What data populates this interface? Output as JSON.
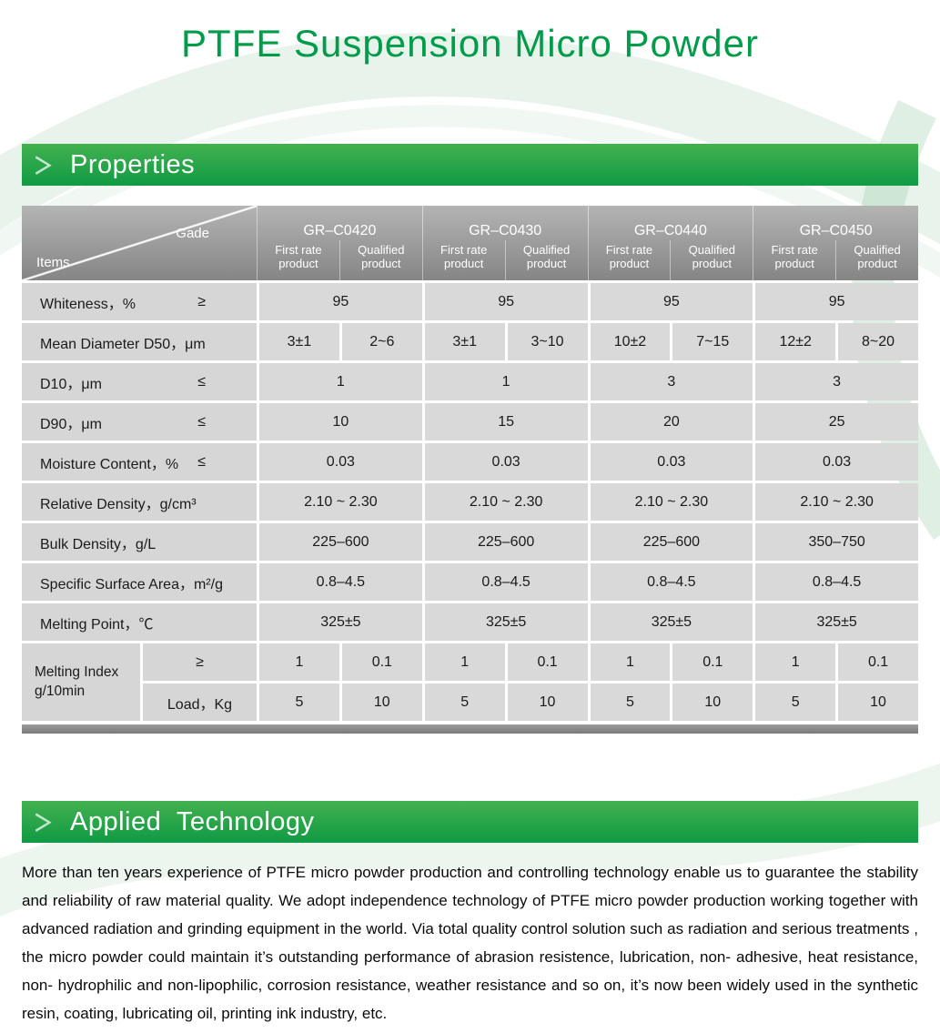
{
  "page": {
    "title": "PTFE Suspension Micro Powder"
  },
  "sections": {
    "properties": {
      "heading": "Properties"
    },
    "applied": {
      "heading": "Applied  Technology",
      "paragraph": "More than ten years experience of PTFE micro powder production and controlling technology enable us to guarantee the stability and reliability of raw material quality. We adopt independence technology of PTFE micro powder production working together with advanced radiation and grinding equipment in the world.  Via total quality control solution such as radiation and serious treatments , the micro powder could maintain it’s outstanding performance of abrasion resistence, lubrication, non- adhesive, heat resistance, non- hydrophilic and non-lipophilic, corrosion resistance, weather resistance and so on, it’s now been widely used in the synthetic resin, coating, lubricating oil, printing ink industry, etc."
    }
  },
  "icons": {
    "chevron": "＞"
  },
  "colors": {
    "brand_green": "#009c4a",
    "banner_green": "#1f9f47",
    "header_gray": "#9a9a9a",
    "cell_gray": "#d9d9d9"
  },
  "table": {
    "corner_top": "Gade",
    "corner_bottom": "Items",
    "grades": [
      "GR–C0420",
      "GR–C0430",
      "GR–C0440",
      "GR–C0450"
    ],
    "sub_headers": [
      "First rate product",
      "Qualified product"
    ],
    "rows": [
      {
        "type": "merged",
        "label": "Whiteness，%",
        "op": "≥",
        "values": [
          "95",
          "95",
          "95",
          "95"
        ]
      },
      {
        "type": "split",
        "label": "Mean Diameter D50，μm",
        "values": [
          "3±1",
          "2~6",
          "3±1",
          "3~10",
          "10±2",
          "7~15",
          "12±2",
          "8~20"
        ]
      },
      {
        "type": "merged",
        "label": "D10，μm",
        "op": "≤",
        "values": [
          "1",
          "1",
          "3",
          "3"
        ]
      },
      {
        "type": "merged",
        "label": "D90，μm",
        "op": "≤",
        "values": [
          "10",
          "15",
          "20",
          "25"
        ]
      },
      {
        "type": "merged",
        "label": "Moisture Content，%",
        "op": "≤",
        "values": [
          "0.03",
          "0.03",
          "0.03",
          "0.03"
        ]
      },
      {
        "type": "merged",
        "label": "Relative Density，g/cm³",
        "values": [
          "2.10 ~ 2.30",
          "2.10 ~ 2.30",
          "2.10 ~ 2.30",
          "2.10 ~ 2.30"
        ]
      },
      {
        "type": "merged",
        "label": "Bulk Density，g/L",
        "values": [
          "225–600",
          "225–600",
          "225–600",
          "350–750"
        ]
      },
      {
        "type": "merged",
        "label": "Specific Surface Area，m²/g",
        "values": [
          "0.8–4.5",
          "0.8–4.5",
          "0.8–4.5",
          "0.8–4.5"
        ]
      },
      {
        "type": "merged",
        "label": "Melting Point，℃",
        "values": [
          "325±5",
          "325±5",
          "325±5",
          "325±5"
        ]
      },
      {
        "type": "double",
        "label": "Melting Index g/10min",
        "sub_rows": [
          {
            "label": "≥",
            "values": [
              "1",
              "0.1",
              "1",
              "0.1",
              "1",
              "0.1",
              "1",
              "0.1"
            ]
          },
          {
            "label": "Load，Kg",
            "values": [
              "5",
              "10",
              "5",
              "10",
              "5",
              "10",
              "5",
              "10"
            ]
          }
        ]
      }
    ]
  }
}
